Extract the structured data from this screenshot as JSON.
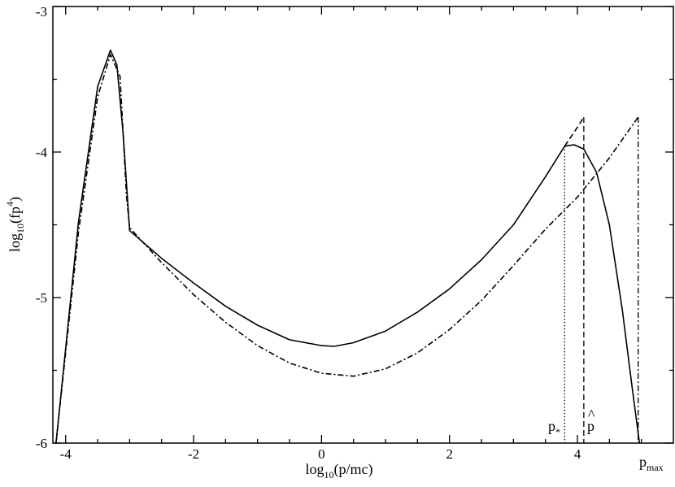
{
  "chart_data": {
    "type": "line",
    "xlabel_base": "log",
    "xlabel_sub": "10",
    "xlabel_arg": "(p/mc)",
    "ylabel_base": "log",
    "ylabel_sub": "10",
    "ylabel_arg": "(fp",
    "ylabel_sup": "4",
    "ylabel_close": ")",
    "xlim": [
      -4.2,
      5.5
    ],
    "ylim": [
      -6,
      -3
    ],
    "x_ticks": [
      -4,
      -2,
      0,
      2,
      4
    ],
    "x_tick_labels": [
      "-4",
      "-2",
      "0",
      "2",
      "4"
    ],
    "y_ticks": [
      -6,
      -5,
      -4,
      -3
    ],
    "y_tick_labels": [
      "-6",
      "-5",
      "-4",
      "-3"
    ],
    "grid": false,
    "legend": "none",
    "series": [
      {
        "style": "solid",
        "x": [
          -4.15,
          -3.8,
          -3.5,
          -3.3,
          -3.2,
          -3.1,
          -3.0,
          -2.5,
          -2.0,
          -1.5,
          -1.0,
          -0.5,
          0.0,
          0.2,
          0.5,
          1.0,
          1.5,
          2.0,
          2.5,
          3.0,
          3.5,
          3.8,
          3.95,
          4.1,
          4.3,
          4.5,
          4.7,
          4.85,
          4.97
        ],
        "y": [
          -6.0,
          -4.48,
          -3.55,
          -3.3,
          -3.4,
          -3.88,
          -4.54,
          -4.73,
          -4.9,
          -5.06,
          -5.19,
          -5.29,
          -5.33,
          -5.335,
          -5.31,
          -5.23,
          -5.1,
          -4.94,
          -4.74,
          -4.5,
          -4.17,
          -3.96,
          -3.95,
          -3.98,
          -4.14,
          -4.5,
          -5.08,
          -5.6,
          -6.0
        ]
      },
      {
        "style": "dashed",
        "x": [
          3.8,
          4.0,
          4.1
        ],
        "y": [
          -3.96,
          -3.83,
          -3.76
        ]
      },
      {
        "style": "dash-dot",
        "x": [
          -4.15,
          -3.8,
          -3.5,
          -3.3,
          -3.15,
          -3.05,
          -3.0,
          -2.5,
          -2.0,
          -1.5,
          -1.0,
          -0.5,
          0.0,
          0.5,
          1.0,
          1.5,
          2.0,
          2.5,
          3.0,
          3.5,
          4.0,
          4.5,
          4.95
        ],
        "y": [
          -6.0,
          -4.55,
          -3.62,
          -3.33,
          -3.48,
          -4.3,
          -4.52,
          -4.76,
          -4.98,
          -5.17,
          -5.33,
          -5.45,
          -5.52,
          -5.54,
          -5.49,
          -5.38,
          -5.22,
          -5.02,
          -4.78,
          -4.53,
          -4.31,
          -4.04,
          -3.76
        ]
      }
    ],
    "markers": [
      {
        "name": "p_star",
        "style": "dotted",
        "x": 3.8,
        "y_top": -3.96
      },
      {
        "name": "p_hat",
        "style": "dashed",
        "x": 4.1,
        "y_top": -3.76
      },
      {
        "name": "p_max",
        "style": "dash-dot",
        "x": 4.95,
        "y_top": -3.76
      }
    ],
    "annotations": {
      "p_star": {
        "base": "p",
        "sub": "*"
      },
      "p_hat": {
        "base": "p",
        "accent": "^"
      },
      "p_max": {
        "base": "p",
        "sub": "max"
      }
    }
  }
}
